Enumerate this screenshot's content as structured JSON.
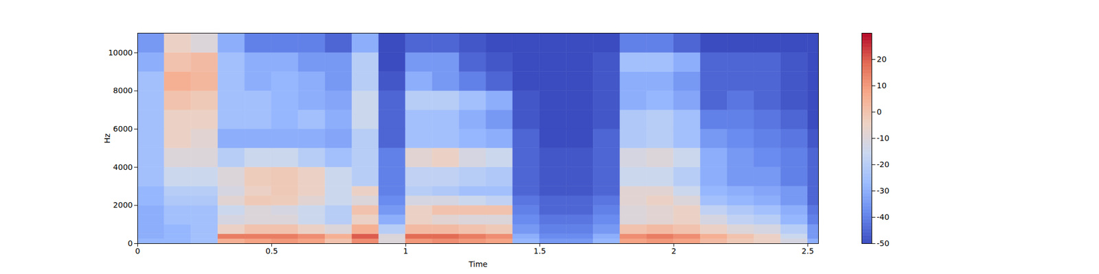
{
  "chart_data": {
    "type": "heatmap",
    "x_label": "Time",
    "y_label": "Hz",
    "xlim": [
      0,
      2.54
    ],
    "ylim": [
      0,
      11025
    ],
    "xticks": [
      0,
      0.5,
      1,
      1.5,
      2,
      2.5
    ],
    "yticks": [
      0,
      2000,
      4000,
      6000,
      8000,
      10000
    ],
    "time_bins": [
      0,
      0.1,
      0.2,
      0.3,
      0.4,
      0.5,
      0.6,
      0.7,
      0.8,
      0.9,
      1.0,
      1.1,
      1.2,
      1.3,
      1.4,
      1.5,
      1.6,
      1.7,
      1.8,
      1.9,
      2.0,
      2.1,
      2.2,
      2.3,
      2.4,
      2.5,
      2.54
    ],
    "freq_bins": [
      0,
      250,
      500,
      1000,
      1500,
      2000,
      2500,
      3000,
      4000,
      5000,
      6000,
      7000,
      8000,
      9000,
      10000,
      11025
    ],
    "cells": [
      [
        -28,
        -28,
        -25,
        5,
        8,
        10,
        8,
        0,
        12,
        -10,
        10,
        12,
        10,
        8,
        -28,
        -35,
        -35,
        -28,
        8,
        10,
        8,
        2,
        -2,
        -5,
        -12,
        -30
      ],
      [
        -30,
        -28,
        -25,
        15,
        15,
        15,
        12,
        5,
        20,
        -10,
        18,
        18,
        15,
        12,
        -30,
        -38,
        -38,
        -30,
        12,
        15,
        12,
        5,
        0,
        -5,
        -15,
        -35
      ],
      [
        -30,
        -28,
        -25,
        -5,
        0,
        0,
        -5,
        -10,
        5,
        -20,
        2,
        2,
        0,
        -2,
        -35,
        -40,
        -40,
        -35,
        0,
        2,
        0,
        -5,
        -10,
        -12,
        -20,
        -35
      ],
      [
        -30,
        -25,
        -25,
        -12,
        -10,
        -10,
        -15,
        -20,
        -5,
        -30,
        -5,
        -8,
        -10,
        -10,
        -38,
        -42,
        -42,
        -38,
        -10,
        -8,
        -5,
        -12,
        -18,
        -20,
        -28,
        -40
      ],
      [
        -30,
        -25,
        -25,
        -15,
        -10,
        -12,
        -15,
        -20,
        0,
        -35,
        -5,
        0,
        0,
        0,
        -40,
        -45,
        -45,
        -40,
        -10,
        -8,
        -5,
        -18,
        -22,
        -25,
        -30,
        -42
      ],
      [
        -28,
        -22,
        -22,
        -8,
        -2,
        -3,
        -8,
        -15,
        -10,
        -38,
        -12,
        -12,
        -15,
        -18,
        -42,
        -45,
        -45,
        -42,
        -8,
        -5,
        -10,
        -25,
        -28,
        -30,
        -35,
        -45
      ],
      [
        -28,
        -20,
        -20,
        -12,
        -5,
        -2,
        -5,
        -15,
        -5,
        -40,
        -20,
        -22,
        -25,
        -25,
        -45,
        -48,
        -48,
        -45,
        -8,
        -8,
        -15,
        -28,
        -30,
        -32,
        -35,
        -45
      ],
      [
        -25,
        -15,
        -15,
        -10,
        -3,
        -2,
        -5,
        -15,
        -20,
        -40,
        -18,
        -18,
        -20,
        -22,
        -45,
        -48,
        -48,
        -45,
        -15,
        -15,
        -20,
        -30,
        -35,
        -35,
        -40,
        -45
      ],
      [
        -25,
        -10,
        -10,
        -20,
        -15,
        -15,
        -20,
        -25,
        -20,
        -40,
        -8,
        -5,
        -12,
        -15,
        -45,
        -48,
        -48,
        -45,
        -12,
        -10,
        -15,
        -30,
        -35,
        -38,
        -40,
        -45
      ],
      [
        -25,
        -5,
        -8,
        -30,
        -30,
        -30,
        -30,
        -32,
        -20,
        -45,
        -25,
        -25,
        -28,
        -30,
        -45,
        -50,
        -50,
        -45,
        -22,
        -20,
        -25,
        -35,
        -38,
        -40,
        -42,
        -48
      ],
      [
        -25,
        -5,
        -5,
        -25,
        -25,
        -28,
        -25,
        -30,
        -15,
        -45,
        -25,
        -25,
        -30,
        -35,
        -48,
        -50,
        -50,
        -48,
        -22,
        -20,
        -25,
        -40,
        -40,
        -42,
        -45,
        -50
      ],
      [
        -25,
        0,
        -2,
        -25,
        -25,
        -28,
        -30,
        -32,
        -15,
        -45,
        -20,
        -20,
        -25,
        -30,
        -48,
        -50,
        -50,
        -48,
        -30,
        -28,
        -32,
        -45,
        -42,
        -45,
        -48,
        -50
      ],
      [
        -25,
        5,
        3,
        -25,
        -30,
        -28,
        -30,
        -35,
        -20,
        -48,
        -30,
        -35,
        -40,
        -45,
        -50,
        -50,
        -50,
        -48,
        -30,
        -30,
        -35,
        -45,
        -45,
        -45,
        -48,
        -50
      ],
      [
        -30,
        0,
        2,
        -25,
        -30,
        -30,
        -35,
        -35,
        -20,
        -50,
        -35,
        -35,
        -45,
        -48,
        -50,
        -50,
        -50,
        -48,
        -25,
        -25,
        -30,
        -45,
        -45,
        -45,
        -48,
        -50
      ],
      [
        -35,
        -5,
        -10,
        -30,
        -40,
        -40,
        -40,
        -45,
        -30,
        -50,
        -45,
        -45,
        -48,
        -50,
        -50,
        -50,
        -50,
        -50,
        -40,
        -40,
        -45,
        -50,
        -50,
        -50,
        -50,
        -50
      ]
    ],
    "colorbar": {
      "range": [
        -50,
        30
      ],
      "ticks": [
        -50,
        -40,
        -30,
        -20,
        -10,
        0,
        10,
        20
      ]
    }
  }
}
